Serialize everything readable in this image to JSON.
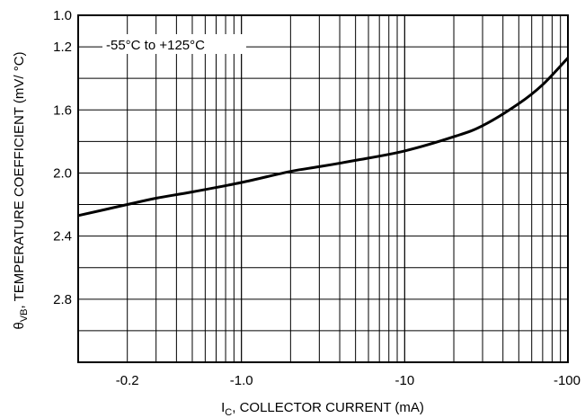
{
  "chart_data": {
    "type": "line",
    "title": "",
    "xlabel_main": "I",
    "xlabel_sub": "C",
    "xlabel_rest": ", COLLECTOR CURRENT (mA)",
    "ylabel_main": "θ",
    "ylabel_sub": "VB",
    "ylabel_rest": ", TEMPERATURE COEFFICIENT (mV/ °C)",
    "x_scale": "log",
    "x_range_abs": [
      0.1,
      100
    ],
    "y_range": [
      1.0,
      3.2
    ],
    "y_inverted": true,
    "x_ticks": [
      {
        "value": 0.2,
        "label": "-0.2"
      },
      {
        "value": 1,
        "label": "-1.0"
      },
      {
        "value": 10,
        "label": "-10"
      },
      {
        "value": 100,
        "label": "-100"
      }
    ],
    "y_ticks": [
      {
        "value": 1.0,
        "label": "1.0"
      },
      {
        "value": 1.2,
        "label": "1.2"
      },
      {
        "value": 1.6,
        "label": "1.6"
      },
      {
        "value": 2.0,
        "label": "2.0"
      },
      {
        "value": 2.4,
        "label": "2.4"
      },
      {
        "value": 2.8,
        "label": "2.8"
      }
    ],
    "y_gridlines": [
      1.0,
      1.2,
      1.4,
      1.6,
      1.8,
      2.0,
      2.2,
      2.4,
      2.6,
      2.8,
      3.0,
      3.2
    ],
    "grid": true,
    "annotation": "-55°C to +125°C",
    "series": [
      {
        "x_abs": [
          0.1,
          0.2,
          0.3,
          0.5,
          1,
          2,
          3,
          5,
          10,
          20,
          30,
          50,
          70,
          100
        ],
        "y": [
          2.27,
          2.2,
          2.16,
          2.12,
          2.06,
          1.99,
          1.96,
          1.92,
          1.86,
          1.77,
          1.7,
          1.56,
          1.44,
          1.27
        ]
      }
    ]
  }
}
